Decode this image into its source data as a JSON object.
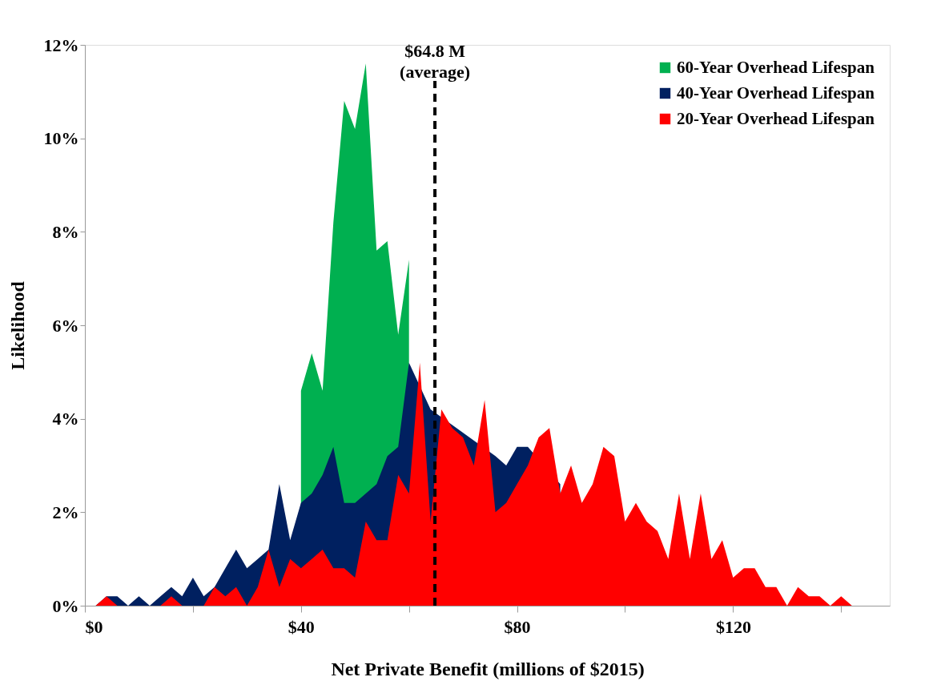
{
  "chart_data": {
    "type": "area",
    "xlabel": "Net Private Benefit (millions of  $2015)",
    "ylabel": "Likelihood",
    "series": [
      {
        "name": "60-Year Overhead Lifespan",
        "color": "#00b050",
        "x": [
          40,
          42,
          44,
          46,
          48,
          50,
          52,
          54,
          56,
          58,
          60
        ],
        "values": [
          4.6,
          5.4,
          4.6,
          8.2,
          10.8,
          10.2,
          11.6,
          7.6,
          7.8,
          5.8,
          7.4
        ]
      },
      {
        "name": "40-Year Overhead Lifespan",
        "color": "#002060",
        "x": [
          2,
          4,
          6,
          8,
          10,
          12,
          14,
          16,
          18,
          20,
          22,
          24,
          26,
          28,
          30,
          32,
          34,
          36,
          38,
          40,
          42,
          44,
          46,
          48,
          50,
          52,
          54,
          56,
          58,
          60,
          62,
          64,
          66,
          68,
          70,
          72,
          74,
          76,
          78,
          80,
          82,
          84,
          86,
          88
        ],
        "values": [
          0,
          0.2,
          0.2,
          0,
          0.2,
          0,
          0.2,
          0.4,
          0.2,
          0.6,
          0.2,
          0.4,
          0.8,
          1.2,
          0.8,
          1.0,
          1.2,
          2.6,
          1.4,
          2.2,
          2.4,
          2.8,
          3.4,
          2.2,
          2.2,
          2.4,
          2.6,
          3.2,
          3.4,
          5.2,
          null,
          4.2,
          null,
          null,
          null,
          null,
          null,
          3.2,
          3.0,
          3.4,
          3.4,
          null,
          null,
          2.6
        ]
      },
      {
        "name": "20-Year Overhead Lifespan",
        "color": "#ff0000",
        "x": [
          2,
          4,
          6,
          8,
          10,
          12,
          14,
          16,
          18,
          20,
          22,
          24,
          26,
          28,
          30,
          32,
          34,
          36,
          38,
          40,
          42,
          44,
          46,
          48,
          50,
          52,
          54,
          56,
          58,
          60,
          62,
          64,
          66,
          68,
          70,
          72,
          74,
          76,
          78,
          80,
          82,
          84,
          86,
          88,
          90,
          92,
          94,
          96,
          98,
          100,
          102,
          104,
          106,
          108,
          110,
          112,
          114,
          116,
          118,
          120,
          122,
          124,
          126,
          128,
          130,
          132,
          134,
          136,
          138,
          140,
          142
        ],
        "values": [
          0,
          0.2,
          0,
          0,
          0,
          0,
          0,
          0.2,
          0,
          0,
          0,
          0.4,
          0.2,
          0.4,
          0,
          0.4,
          1.2,
          0.4,
          1.0,
          0.8,
          1.0,
          1.2,
          0.8,
          0.8,
          0.6,
          1.8,
          1.4,
          1.4,
          2.8,
          2.4,
          5.2,
          1.8,
          4.2,
          3.8,
          3.6,
          3.0,
          4.4,
          2.0,
          2.2,
          2.6,
          3.0,
          3.6,
          3.8,
          2.4,
          3.0,
          2.2,
          2.6,
          3.4,
          3.2,
          1.8,
          2.2,
          1.8,
          1.6,
          1.0,
          2.4,
          1.0,
          2.4,
          1.0,
          1.4,
          0.6,
          0.8,
          0.8,
          0.4,
          0.4,
          0,
          0.4,
          0.2,
          0.2,
          0,
          0.2,
          0
        ]
      }
    ],
    "xlim": [
      0,
      149
    ],
    "xticks": [
      {
        "value": 0,
        "label": "$0"
      },
      {
        "value": 20,
        "label": null
      },
      {
        "value": 40,
        "label": "$40"
      },
      {
        "value": 60,
        "label": null
      },
      {
        "value": 80,
        "label": "$80"
      },
      {
        "value": 100,
        "label": null
      },
      {
        "value": 120,
        "label": "$120"
      },
      {
        "value": 140,
        "label": null
      }
    ],
    "ylim": [
      0,
      12
    ],
    "yticks": [
      {
        "value": 0,
        "label": "0%"
      },
      {
        "value": 2,
        "label": "2%"
      },
      {
        "value": 4,
        "label": "4%"
      },
      {
        "value": 6,
        "label": "6%"
      },
      {
        "value": 8,
        "label": "8%"
      },
      {
        "value": 10,
        "label": "10%"
      },
      {
        "value": 12,
        "label": "12%"
      }
    ],
    "ref_lines": [
      {
        "axis": "x",
        "value": 64.8,
        "label": "$64.8 M\n(average)",
        "color": "#000000",
        "line_style": "dashed"
      }
    ],
    "grid": false,
    "legend": "top right"
  }
}
